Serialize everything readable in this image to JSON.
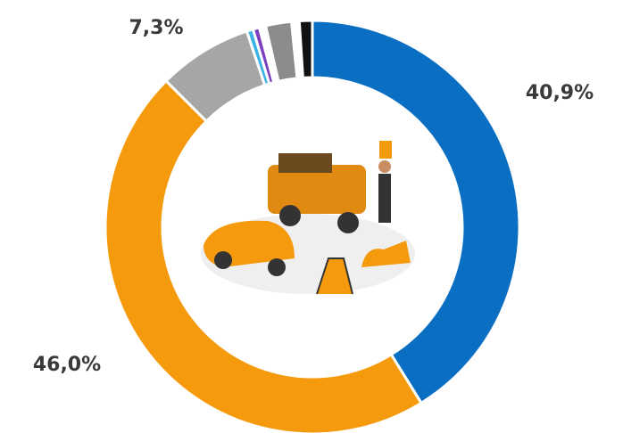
{
  "chart_data": {
    "type": "donut",
    "values": [
      40.9,
      46.0,
      7.3,
      0.5,
      0.5,
      0.5,
      2.0,
      0.6,
      1.0
    ],
    "value_labels": [
      "40,9%",
      "46,0%",
      "7,3%",
      null,
      null,
      null,
      null,
      null,
      null
    ],
    "colors": [
      "#0a6fc2",
      "#f59a0c",
      "#a6a6a6",
      "#3bb4e5",
      "#7b3fbf",
      "#ffffff",
      "#8c8c8c",
      "#ffffff",
      "#111111"
    ]
  }
}
